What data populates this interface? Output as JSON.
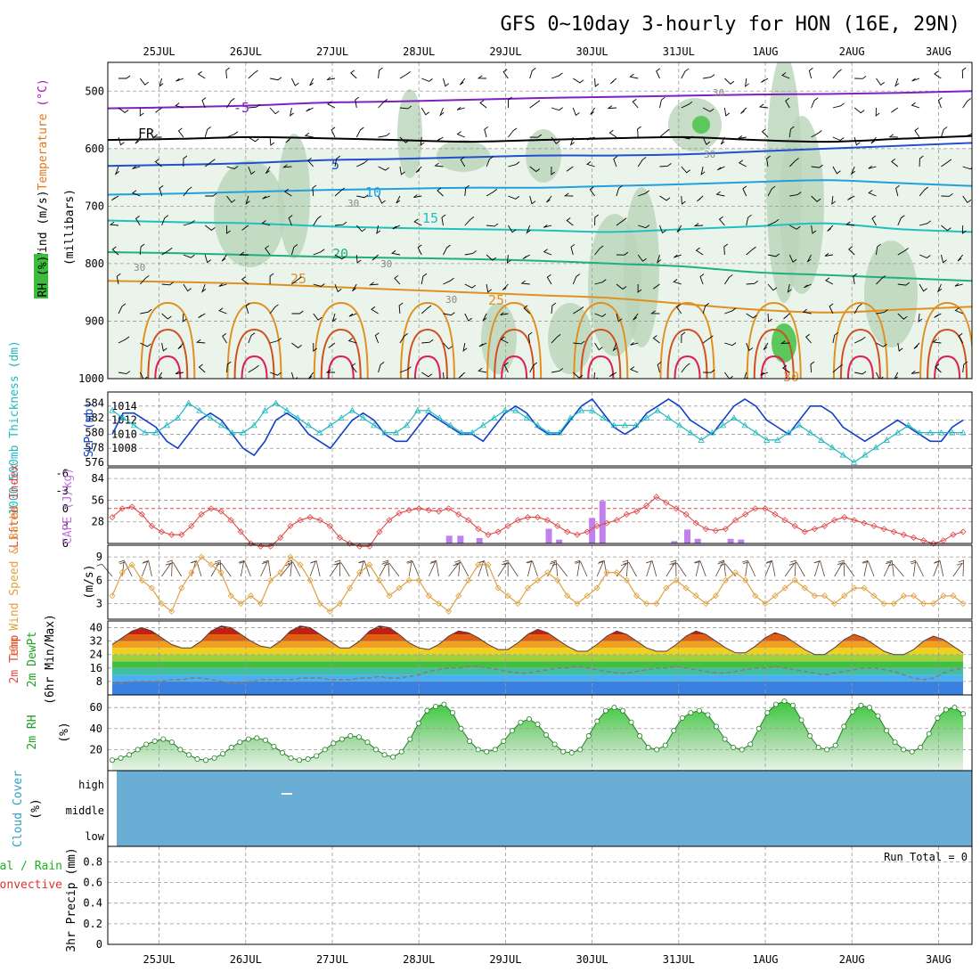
{
  "title": "GFS 0~10day 3-hourly for HON (16E, 29N)",
  "dates": [
    "25JUL",
    "26JUL",
    "27JUL",
    "28JUL",
    "29JUL",
    "30JUL",
    "31JUL",
    "1AUG",
    "2AUG",
    "3AUG"
  ],
  "run_total": "Run Total = 0",
  "colors": {
    "temp_line": "#e07820",
    "slp_line": "#1040c8",
    "thick_line": "#20b8c0",
    "li_line": "#e04848",
    "cape_bar": "#c080f0",
    "wind_line": "#e0a040",
    "dew_line": "#808080",
    "rh_line": "#208020",
    "cloud_fill": "#6aaed6",
    "rh_fill": "#50c850"
  },
  "chart_data": [
    {
      "type": "contour",
      "name": "upper",
      "ylabel_parts": [
        {
          "text": "Wind",
          "color": "#000000"
        },
        {
          "text": " (m/s)",
          "color": "#000000"
        },
        {
          "text": "Temperature",
          "color": "#e07820"
        },
        {
          "text": " (°C)",
          "color": "#c000c0"
        }
      ],
      "ylabel_units": "(millibars)",
      "rh_label": "RH (%)",
      "ylim": [
        1000,
        450
      ],
      "yticks": [
        500,
        600,
        700,
        800,
        900,
        1000
      ],
      "isotherms": [
        {
          "label": "-5",
          "color": "#8020c0",
          "levels": [
            530,
            528,
            525,
            520,
            518,
            515,
            512,
            510,
            508,
            506,
            505,
            503,
            500
          ]
        },
        {
          "label": "FR",
          "color": "#000000",
          "levels": [
            585,
            583,
            580,
            582,
            585,
            588,
            585,
            582,
            580,
            585,
            588,
            583,
            578
          ]
        },
        {
          "label": "5",
          "color": "#2050d0",
          "levels": [
            630,
            628,
            625,
            620,
            618,
            615,
            612,
            612,
            610,
            605,
            600,
            595,
            590
          ]
        },
        {
          "label": "10",
          "color": "#20a0e0",
          "levels": [
            680,
            678,
            675,
            672,
            670,
            668,
            668,
            665,
            662,
            658,
            655,
            660,
            665
          ]
        },
        {
          "label": "15",
          "color": "#20c0c0",
          "levels": [
            725,
            728,
            730,
            735,
            738,
            740,
            742,
            745,
            740,
            735,
            730,
            740,
            745
          ]
        },
        {
          "label": "20",
          "color": "#20b080",
          "levels": [
            780,
            782,
            785,
            788,
            790,
            792,
            795,
            800,
            805,
            815,
            820,
            825,
            830
          ]
        },
        {
          "label": "25",
          "color": "#e09020",
          "levels": [
            830,
            832,
            835,
            840,
            845,
            850,
            855,
            860,
            870,
            880,
            885,
            880,
            875
          ]
        }
      ],
      "contour_labels": [
        "-5",
        "FR",
        "5",
        "10",
        "15",
        "20",
        "25",
        "25",
        "30",
        "30",
        "30",
        "30",
        "30",
        "30",
        "30"
      ]
    },
    {
      "type": "line",
      "name": "slp_thickness",
      "ylabel_left": "1000-500mb Thickness (dm)",
      "ylabel_right": "SLP (mb)",
      "left_ticks": [
        576,
        578,
        580,
        582,
        584
      ],
      "right_ticks": [
        1008,
        1010,
        1012,
        1014
      ],
      "left_range": [
        575.5,
        585.5
      ],
      "right_range": [
        1005.5,
        1016
      ],
      "slp": [
        1010,
        1013,
        1013,
        1012,
        1011,
        1009,
        1008,
        1010,
        1012,
        1013,
        1012,
        1010,
        1008,
        1007,
        1009,
        1012,
        1013,
        1012,
        1010,
        1009,
        1008,
        1010,
        1012,
        1013,
        1012,
        1010,
        1009,
        1009,
        1011,
        1013,
        1012,
        1011,
        1010,
        1010,
        1009,
        1011,
        1013,
        1014,
        1013,
        1011,
        1010,
        1010,
        1012,
        1014,
        1015,
        1013,
        1011,
        1010,
        1011,
        1013,
        1014,
        1015,
        1014,
        1012,
        1011,
        1010,
        1012,
        1014,
        1015,
        1014,
        1012,
        1011,
        1010,
        1012,
        1014,
        1014,
        1013,
        1011,
        1010,
        1009,
        1010,
        1011,
        1012,
        1011,
        1010,
        1009,
        1009,
        1011,
        1012
      ],
      "thickness": [
        583,
        582,
        581,
        580,
        580,
        581,
        582,
        584,
        583,
        582,
        581,
        580,
        580,
        581,
        583,
        584,
        583,
        582,
        581,
        580,
        581,
        582,
        583,
        582,
        581,
        580,
        580,
        581,
        583,
        583,
        582,
        581,
        580,
        580,
        581,
        582,
        583,
        583,
        582,
        581,
        580,
        580,
        582,
        583,
        583,
        582,
        581,
        581,
        581,
        582,
        583,
        582,
        581,
        580,
        579,
        580,
        581,
        582,
        581,
        580,
        579,
        579,
        580,
        581,
        580,
        579,
        578,
        577,
        576,
        577,
        578,
        579,
        580,
        581,
        580,
        580,
        580,
        580,
        580
      ]
    },
    {
      "type": "bar+line",
      "name": "cape_li",
      "ylabel_left": "Lifted Index",
      "ylabel_right": "CAPE (J/kg)",
      "li_ticks": [
        -6,
        -3,
        0,
        3,
        6
      ],
      "li_range": [
        6,
        -7
      ],
      "cape_ticks": [
        28,
        56,
        84
      ],
      "cape_range": [
        0,
        98
      ],
      "lifted_index": [
        1.5,
        0,
        -0.3,
        1,
        3,
        4,
        4.5,
        4.5,
        3,
        1,
        0,
        0.5,
        2,
        4,
        6,
        6.5,
        6.5,
        5,
        3,
        2,
        1.5,
        2,
        3,
        5,
        6,
        6.5,
        6.5,
        4,
        2,
        0.8,
        0.3,
        0,
        0.3,
        0.5,
        0,
        1,
        2,
        3.5,
        4.5,
        4,
        3,
        2,
        1.5,
        1.5,
        2,
        3,
        4,
        4.5,
        4,
        3,
        2.5,
        2,
        1,
        0.5,
        -0.5,
        -2,
        -1,
        0,
        1,
        2.5,
        3.5,
        3.8,
        3.5,
        2,
        1,
        0,
        0,
        1,
        2,
        3,
        4,
        3.5,
        3,
        2,
        1.5,
        2,
        2.5,
        3,
        3.5,
        4,
        4.5,
        5,
        5.5,
        6,
        5.5,
        4.5,
        4
      ],
      "cape_bars": [
        {
          "day": 3.85,
          "value": 10
        },
        {
          "day": 3.98,
          "value": 10
        },
        {
          "day": 4.2,
          "value": 7
        },
        {
          "day": 5.0,
          "value": 19
        },
        {
          "day": 5.12,
          "value": 5
        },
        {
          "day": 5.5,
          "value": 33
        },
        {
          "day": 5.62,
          "value": 55
        },
        {
          "day": 6.45,
          "value": 3
        },
        {
          "day": 6.6,
          "value": 18
        },
        {
          "day": 6.72,
          "value": 6
        },
        {
          "day": 7.1,
          "value": 6
        },
        {
          "day": 7.22,
          "value": 5
        }
      ]
    },
    {
      "type": "line",
      "name": "wind10m",
      "ylabel": "10m Wind Speed & Barbs",
      "units": "(m/s)",
      "yticks": [
        3,
        6,
        9
      ],
      "ylim": [
        1,
        10.5
      ],
      "speed": [
        4,
        7,
        8,
        6,
        5,
        3,
        2,
        5,
        7,
        9,
        8,
        7,
        4,
        3,
        4,
        3,
        6,
        7,
        9,
        8,
        6,
        3,
        2,
        3,
        5,
        7,
        8,
        6,
        4,
        5,
        6,
        6,
        4,
        3,
        2,
        4,
        6,
        8,
        8,
        5,
        4,
        3,
        5,
        6,
        7,
        6,
        4,
        3,
        4,
        5,
        7,
        7,
        6,
        4,
        3,
        3,
        5,
        6,
        5,
        4,
        3,
        4,
        6,
        7,
        6,
        4,
        3,
        4,
        5,
        6,
        5,
        4,
        4,
        3,
        4,
        5,
        5,
        4,
        3,
        3,
        4,
        4,
        3,
        3,
        4,
        4,
        3
      ]
    },
    {
      "type": "area",
      "name": "temp2m",
      "ylabel": "2m Temp 2m DewPt (6hr Min/Max)",
      "yticks": [
        8,
        16,
        24,
        32,
        40
      ],
      "ylim": [
        0,
        44
      ],
      "temp": [
        30,
        34,
        38,
        40,
        38,
        34,
        30,
        28,
        28,
        32,
        38,
        41,
        40,
        36,
        32,
        29,
        28,
        32,
        38,
        41,
        40,
        36,
        32,
        28,
        28,
        32,
        38,
        41,
        40,
        36,
        31,
        28,
        27,
        30,
        35,
        38,
        37,
        34,
        30,
        27,
        27,
        31,
        36,
        39,
        37,
        33,
        29,
        26,
        26,
        30,
        35,
        38,
        36,
        32,
        28,
        26,
        26,
        30,
        35,
        38,
        36,
        32,
        28,
        25,
        25,
        29,
        34,
        37,
        35,
        31,
        27,
        24,
        24,
        28,
        33,
        36,
        34,
        30,
        26,
        24,
        24,
        27,
        32,
        35,
        33,
        29,
        25
      ],
      "dewpoint": [
        7,
        7,
        8,
        8,
        8,
        8,
        9,
        9,
        10,
        10,
        9,
        8,
        7,
        7,
        8,
        9,
        9,
        9,
        9,
        10,
        10,
        10,
        9,
        9,
        9,
        10,
        10,
        11,
        10,
        10,
        11,
        12,
        14,
        15,
        16,
        16,
        17,
        17,
        16,
        15,
        14,
        13,
        13,
        14,
        15,
        16,
        16,
        17,
        16,
        15,
        14,
        13,
        13,
        14,
        15,
        16,
        16,
        17,
        16,
        15,
        14,
        13,
        13,
        14,
        15,
        16,
        16,
        17,
        16,
        15,
        14,
        13,
        12,
        13,
        14,
        15,
        16,
        16,
        15,
        14,
        12,
        10,
        9,
        10,
        13,
        15,
        16
      ]
    },
    {
      "type": "area",
      "name": "rh2m",
      "ylabel": "2m RH",
      "units": "(%)",
      "yticks": [
        20,
        40,
        60
      ],
      "ylim": [
        0,
        72
      ],
      "rh": [
        10,
        12,
        15,
        20,
        25,
        28,
        30,
        27,
        20,
        15,
        11,
        10,
        12,
        16,
        22,
        27,
        30,
        31,
        29,
        23,
        17,
        12,
        10,
        11,
        14,
        20,
        26,
        30,
        33,
        32,
        27,
        20,
        15,
        13,
        18,
        30,
        45,
        57,
        61,
        63,
        55,
        40,
        28,
        20,
        18,
        20,
        28,
        38,
        46,
        49,
        44,
        34,
        25,
        18,
        17,
        20,
        33,
        47,
        57,
        60,
        57,
        46,
        33,
        22,
        20,
        24,
        38,
        50,
        55,
        57,
        53,
        42,
        30,
        22,
        20,
        25,
        40,
        55,
        63,
        66,
        62,
        48,
        33,
        22,
        20,
        24,
        42,
        56,
        62,
        60,
        52,
        38,
        27,
        20,
        18,
        22,
        35,
        50,
        58,
        60,
        54
      ]
    },
    {
      "type": "heatmap",
      "name": "cloud",
      "ylabel": "Cloud Cover",
      "units": "(%)",
      "levels": [
        "high",
        "middle",
        "low"
      ]
    },
    {
      "type": "bar",
      "name": "precip",
      "ylabel": "3hr Precip (mm)",
      "legend_total": "Total / Rain",
      "legend_conv": "Convective",
      "yticks": [
        0,
        0.2,
        0.4,
        0.6,
        0.8
      ],
      "ylim": [
        0,
        0.95
      ],
      "values": []
    }
  ]
}
